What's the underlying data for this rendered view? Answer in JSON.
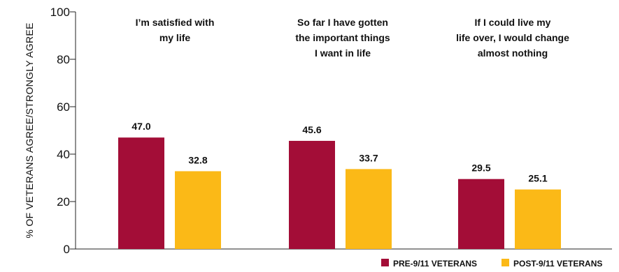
{
  "chart_data": {
    "type": "bar",
    "categories": [
      [
        "I’m satisfied with",
        "my life"
      ],
      [
        "So far I have gotten",
        "the important things",
        "I want in life"
      ],
      [
        "If I could live my",
        "life over, I would change",
        "almost nothing"
      ]
    ],
    "series": [
      {
        "name": "PRE-9/11 VETERANS",
        "color": "#A30D37",
        "values": [
          47.0,
          45.6,
          29.5
        ]
      },
      {
        "name": "POST-9/11 VETERANS",
        "color": "#FBB917",
        "values": [
          32.8,
          33.7,
          25.1
        ]
      }
    ],
    "ylabel": "% OF VETERANS AGREE/STRONGLY AGREE",
    "xlabel": "",
    "ylim": [
      0,
      100
    ],
    "yticks": [
      0,
      20,
      40,
      60,
      80,
      100
    ],
    "grid": false,
    "legend_position": "bottom-right"
  }
}
